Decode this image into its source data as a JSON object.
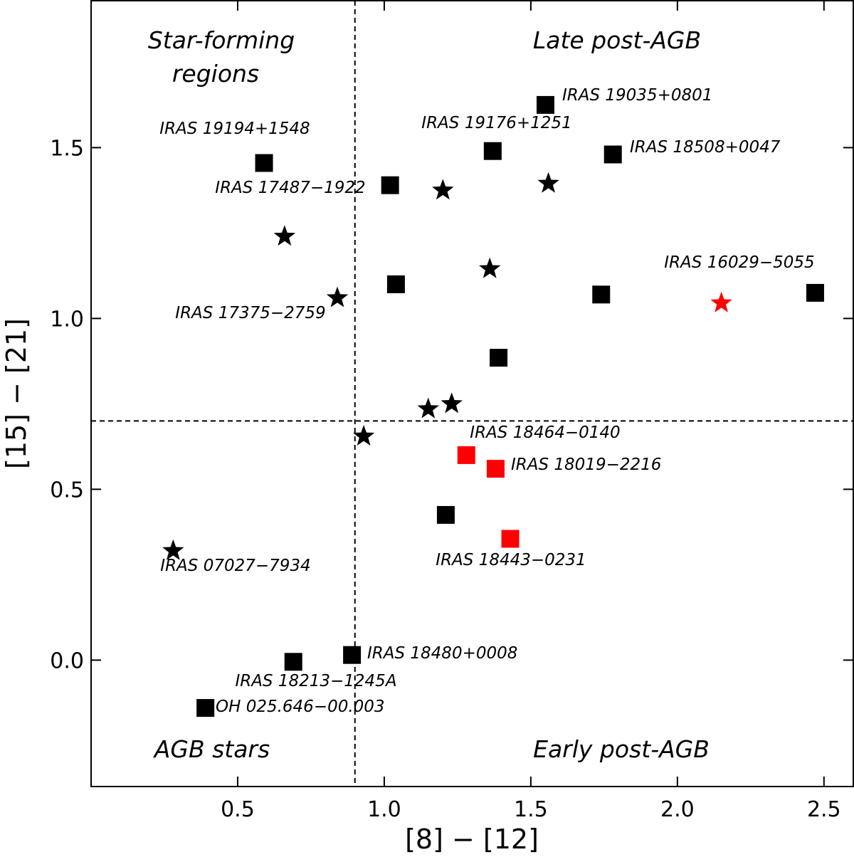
{
  "chart_data": {
    "type": "scatter",
    "title": "",
    "xlabel": "[8] − [12]",
    "ylabel": "[15] − [21]",
    "xlim": [
      0.0,
      2.6
    ],
    "ylim": [
      -0.37,
      1.93
    ],
    "x_ticks": [
      {
        "value": 0.5,
        "label": "0.5"
      },
      {
        "value": 1.0,
        "label": "1.0"
      },
      {
        "value": 1.5,
        "label": "1.5"
      },
      {
        "value": 2.0,
        "label": "2.0"
      },
      {
        "value": 2.5,
        "label": "2.5"
      }
    ],
    "y_ticks": [
      {
        "value": 0.0,
        "label": "0.0"
      },
      {
        "value": 0.5,
        "label": "0.5"
      },
      {
        "value": 1.0,
        "label": "1.0"
      },
      {
        "value": 1.5,
        "label": "1.5"
      }
    ],
    "dividers": {
      "x": 0.9,
      "y": 0.7
    },
    "regions": [
      {
        "name": "star-forming",
        "lines": [
          "Star-forming",
          "regions"
        ]
      },
      {
        "name": "late-post-agb",
        "lines": [
          "Late post-AGB"
        ]
      },
      {
        "name": "agb-stars",
        "lines": [
          "AGB stars"
        ]
      },
      {
        "name": "early-post-agb",
        "lines": [
          "Early post-AGB"
        ]
      }
    ],
    "colors": {
      "black": "#000000",
      "red": "#ff0000"
    },
    "points": [
      {
        "marker": "square",
        "color": "black",
        "x": 0.59,
        "y": 1.455,
        "label": "IRAS 19194+1548"
      },
      {
        "marker": "square",
        "color": "black",
        "x": 1.02,
        "y": 1.39,
        "label": "IRAS 17487−1922"
      },
      {
        "marker": "square",
        "color": "black",
        "x": 1.37,
        "y": 1.49,
        "label": "IRAS 19176+1251"
      },
      {
        "marker": "square",
        "color": "black",
        "x": 1.55,
        "y": 1.625,
        "label": "IRAS 19035+0801"
      },
      {
        "marker": "square",
        "color": "black",
        "x": 1.78,
        "y": 1.48,
        "label": "IRAS 18508+0047"
      },
      {
        "marker": "square",
        "color": "black",
        "x": 1.04,
        "y": 1.1,
        "label": ""
      },
      {
        "marker": "square",
        "color": "black",
        "x": 1.74,
        "y": 1.07,
        "label": ""
      },
      {
        "marker": "square",
        "color": "black",
        "x": 2.47,
        "y": 1.075,
        "label": ""
      },
      {
        "marker": "square",
        "color": "black",
        "x": 1.39,
        "y": 0.885,
        "label": ""
      },
      {
        "marker": "square",
        "color": "black",
        "x": 1.21,
        "y": 0.425,
        "label": ""
      },
      {
        "marker": "square",
        "color": "black",
        "x": 0.89,
        "y": 0.015,
        "label": "IRAS 18480+0008"
      },
      {
        "marker": "square",
        "color": "black",
        "x": 0.69,
        "y": -0.005,
        "label": "IRAS 18213−1245A"
      },
      {
        "marker": "square",
        "color": "black",
        "x": 0.39,
        "y": -0.14,
        "label": "OH 025.646−00.003"
      },
      {
        "marker": "square",
        "color": "red",
        "x": 1.28,
        "y": 0.6,
        "label": "IRAS 18464−0140"
      },
      {
        "marker": "square",
        "color": "red",
        "x": 1.38,
        "y": 0.56,
        "label": "IRAS 18019−2216"
      },
      {
        "marker": "square",
        "color": "red",
        "x": 1.43,
        "y": 0.355,
        "label": "IRAS 18443−0231"
      },
      {
        "marker": "star",
        "color": "black",
        "x": 1.2,
        "y": 1.375,
        "label": ""
      },
      {
        "marker": "star",
        "color": "black",
        "x": 1.56,
        "y": 1.395,
        "label": ""
      },
      {
        "marker": "star",
        "color": "black",
        "x": 0.66,
        "y": 1.24,
        "label": ""
      },
      {
        "marker": "star",
        "color": "black",
        "x": 1.36,
        "y": 1.145,
        "label": ""
      },
      {
        "marker": "star",
        "color": "black",
        "x": 0.84,
        "y": 1.06,
        "label": "IRAS 17375−2759"
      },
      {
        "marker": "star",
        "color": "black",
        "x": 1.15,
        "y": 0.735,
        "label": ""
      },
      {
        "marker": "star",
        "color": "black",
        "x": 1.23,
        "y": 0.75,
        "label": ""
      },
      {
        "marker": "star",
        "color": "black",
        "x": 0.93,
        "y": 0.655,
        "label": ""
      },
      {
        "marker": "star",
        "color": "black",
        "x": 0.28,
        "y": 0.32,
        "label": "IRAS 07027−7934"
      },
      {
        "marker": "star",
        "color": "red",
        "x": 2.15,
        "y": 1.045,
        "label": "IRAS 16029−5055"
      }
    ]
  }
}
